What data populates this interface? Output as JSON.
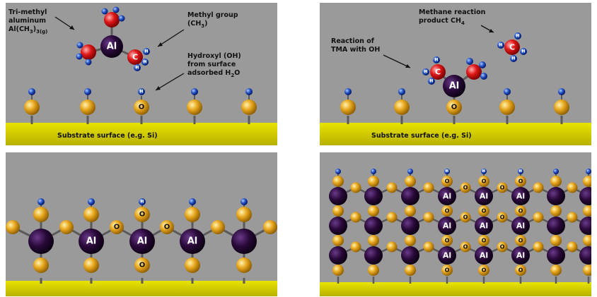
{
  "panels": {
    "p1": {
      "labels": {
        "tma_line1": "Tri-methyl",
        "tma_line2": "aluminum",
        "tma_line3_main": "Al(CH",
        "tma_line3_sub1": "3",
        "tma_line3_mid": ")",
        "tma_line3_sub2": "3(g)",
        "methyl_line1": "Methyl group",
        "methyl_line2_main": "(CH",
        "methyl_line2_sub": "3",
        "methyl_line2_end": ")",
        "hydroxyl_line1": "Hydroxyl (OH)",
        "hydroxyl_line2": "from surface",
        "hydroxyl_line3_main": "adsorbed H",
        "hydroxyl_line3_sub": "2",
        "hydroxyl_line3_end": "O",
        "substrate": "Substrate surface (e.g. Si)"
      }
    },
    "p2": {
      "labels": {
        "methane_line1": "Methane reaction",
        "methane_line2_main": "product CH",
        "methane_line2_sub": "4",
        "reaction_line1": "Reaction of",
        "reaction_line2": "TMA with OH",
        "substrate": "Substrate surface (e.g. Si)"
      }
    }
  },
  "atom_symbols": {
    "aluminum": "Al",
    "oxygen": "O",
    "carbon": "C",
    "hydrogen": "H"
  },
  "colors": {
    "background": "#9a9a9a",
    "substrate": "#d8d400",
    "substrate_dark": "#b0ab00",
    "gold_atom": "#e0a020",
    "al_atom": "#2a0a3a",
    "carbon_atom": "#e01818",
    "hydrogen_atom": "#2050c0",
    "bond": "#5a5a5a"
  }
}
